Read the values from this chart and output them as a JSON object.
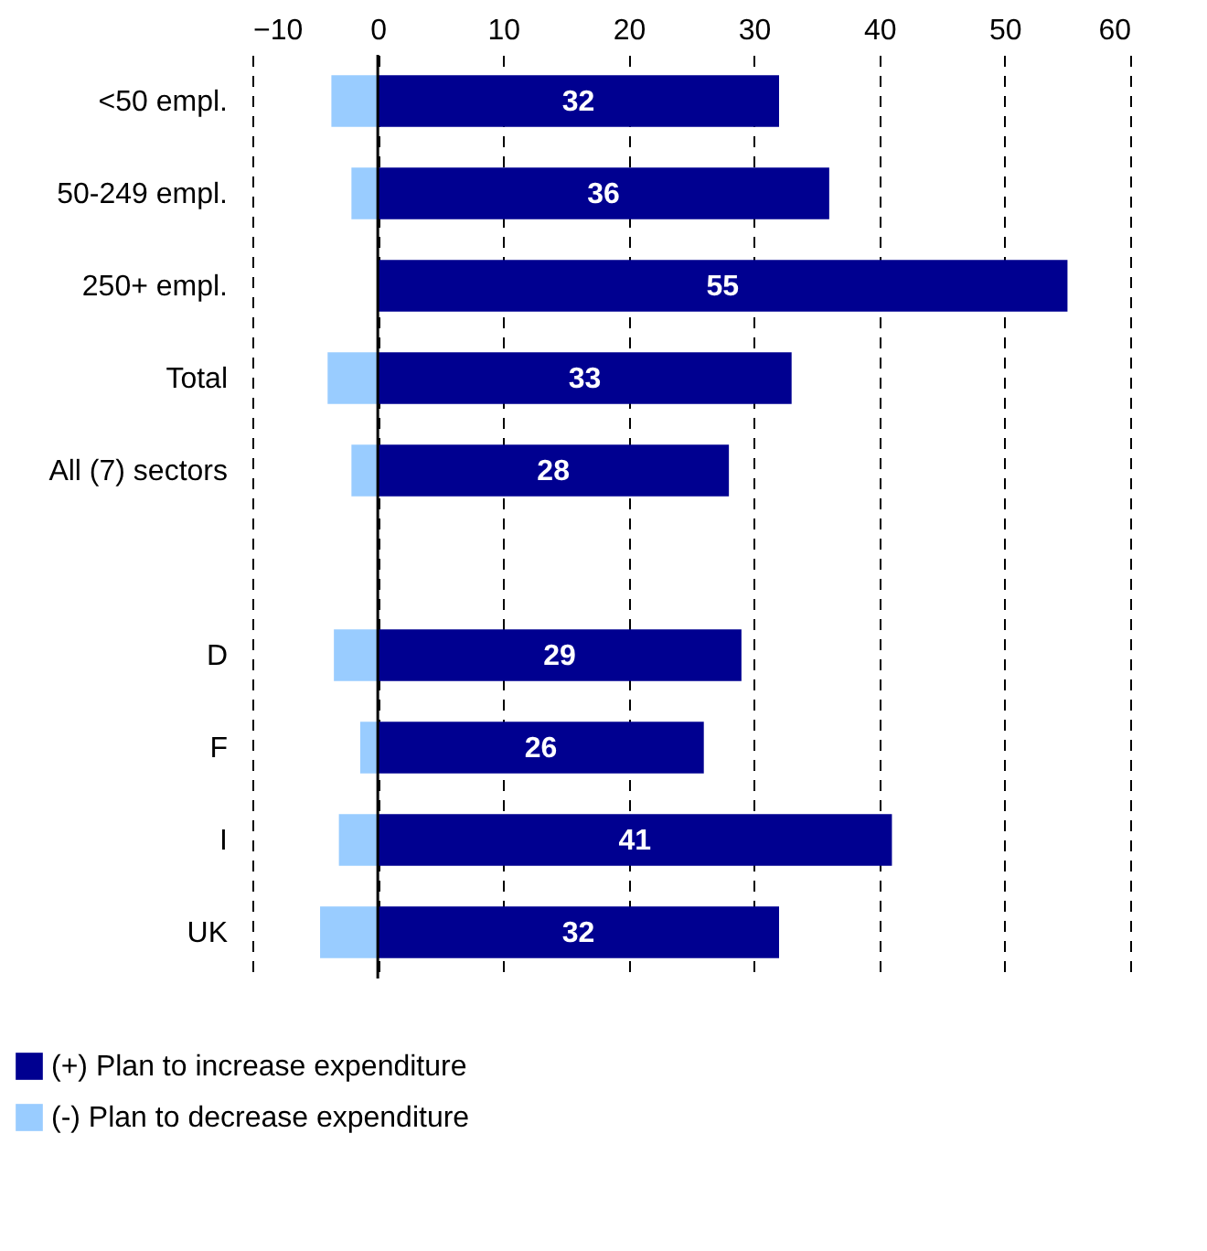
{
  "chart_data": {
    "type": "bar",
    "orientation": "horizontal",
    "categories": [
      "<50 empl.",
      "50-249 empl.",
      "250+ empl.",
      "Total",
      "All (7) sectors",
      null,
      "D",
      "F",
      "I",
      "UK"
    ],
    "series": [
      {
        "name": "(+) Plan to increase expenditure",
        "color": "#000090",
        "values": [
          32,
          36,
          55,
          33,
          28,
          null,
          29,
          26,
          41,
          32
        ],
        "value_labels": [
          "32",
          "36",
          "55",
          "33",
          "28",
          null,
          "29",
          "26",
          "41",
          "32"
        ]
      },
      {
        "name": "(-) Plan to decrease expenditure",
        "color": "#99ccff",
        "values": [
          -3.7,
          -2.1,
          null,
          -4.0,
          -2.1,
          null,
          -3.5,
          -1.4,
          -3.1,
          -4.6
        ]
      }
    ],
    "xlim": [
      -10,
      60
    ],
    "xticks": [
      -10,
      0,
      10,
      20,
      30,
      40,
      50,
      60
    ],
    "ref_lines": [
      {
        "axis": "x",
        "value": 0,
        "color": "#000000"
      }
    ],
    "grid": "x",
    "legend": "bottom left",
    "stacked": true
  }
}
